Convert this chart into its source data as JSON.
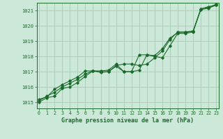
{
  "title": "Graphe pression niveau de la mer (hPa)",
  "background_color": "#cce8d8",
  "grid_color": "#a8c8b8",
  "line_color": "#1a6b2a",
  "x_ticks": [
    0,
    1,
    2,
    3,
    4,
    5,
    6,
    7,
    8,
    9,
    10,
    11,
    12,
    13,
    14,
    15,
    16,
    17,
    18,
    19,
    20,
    21,
    22,
    23
  ],
  "xlim": [
    -0.3,
    23.3
  ],
  "ylim": [
    1014.6,
    1021.5
  ],
  "yticks": [
    1015,
    1016,
    1017,
    1018,
    1019,
    1020,
    1021
  ],
  "series1": [
    1015.0,
    1015.3,
    1015.4,
    1015.9,
    1016.0,
    1016.3,
    1016.7,
    1017.05,
    1017.05,
    1017.1,
    1017.5,
    1017.0,
    1017.0,
    1017.1,
    1018.1,
    1018.0,
    1017.9,
    1018.7,
    1019.5,
    1019.5,
    1019.6,
    1021.1,
    1021.25,
    1021.35
  ],
  "series2": [
    1015.1,
    1015.4,
    1015.65,
    1016.0,
    1016.25,
    1016.5,
    1016.85,
    1017.05,
    1017.0,
    1017.0,
    1017.4,
    1017.5,
    1017.5,
    1017.4,
    1017.5,
    1017.9,
    1018.35,
    1019.1,
    1019.6,
    1019.6,
    1019.65,
    1021.05,
    1021.15,
    1021.35
  ],
  "series3": [
    1015.2,
    1015.35,
    1015.85,
    1016.15,
    1016.4,
    1016.65,
    1017.05,
    1017.05,
    1016.95,
    1017.0,
    1017.35,
    1017.0,
    1017.0,
    1018.1,
    1018.1,
    1018.05,
    1018.5,
    1019.2,
    1019.55,
    1019.55,
    1019.65,
    1021.1,
    1021.2,
    1021.4
  ]
}
